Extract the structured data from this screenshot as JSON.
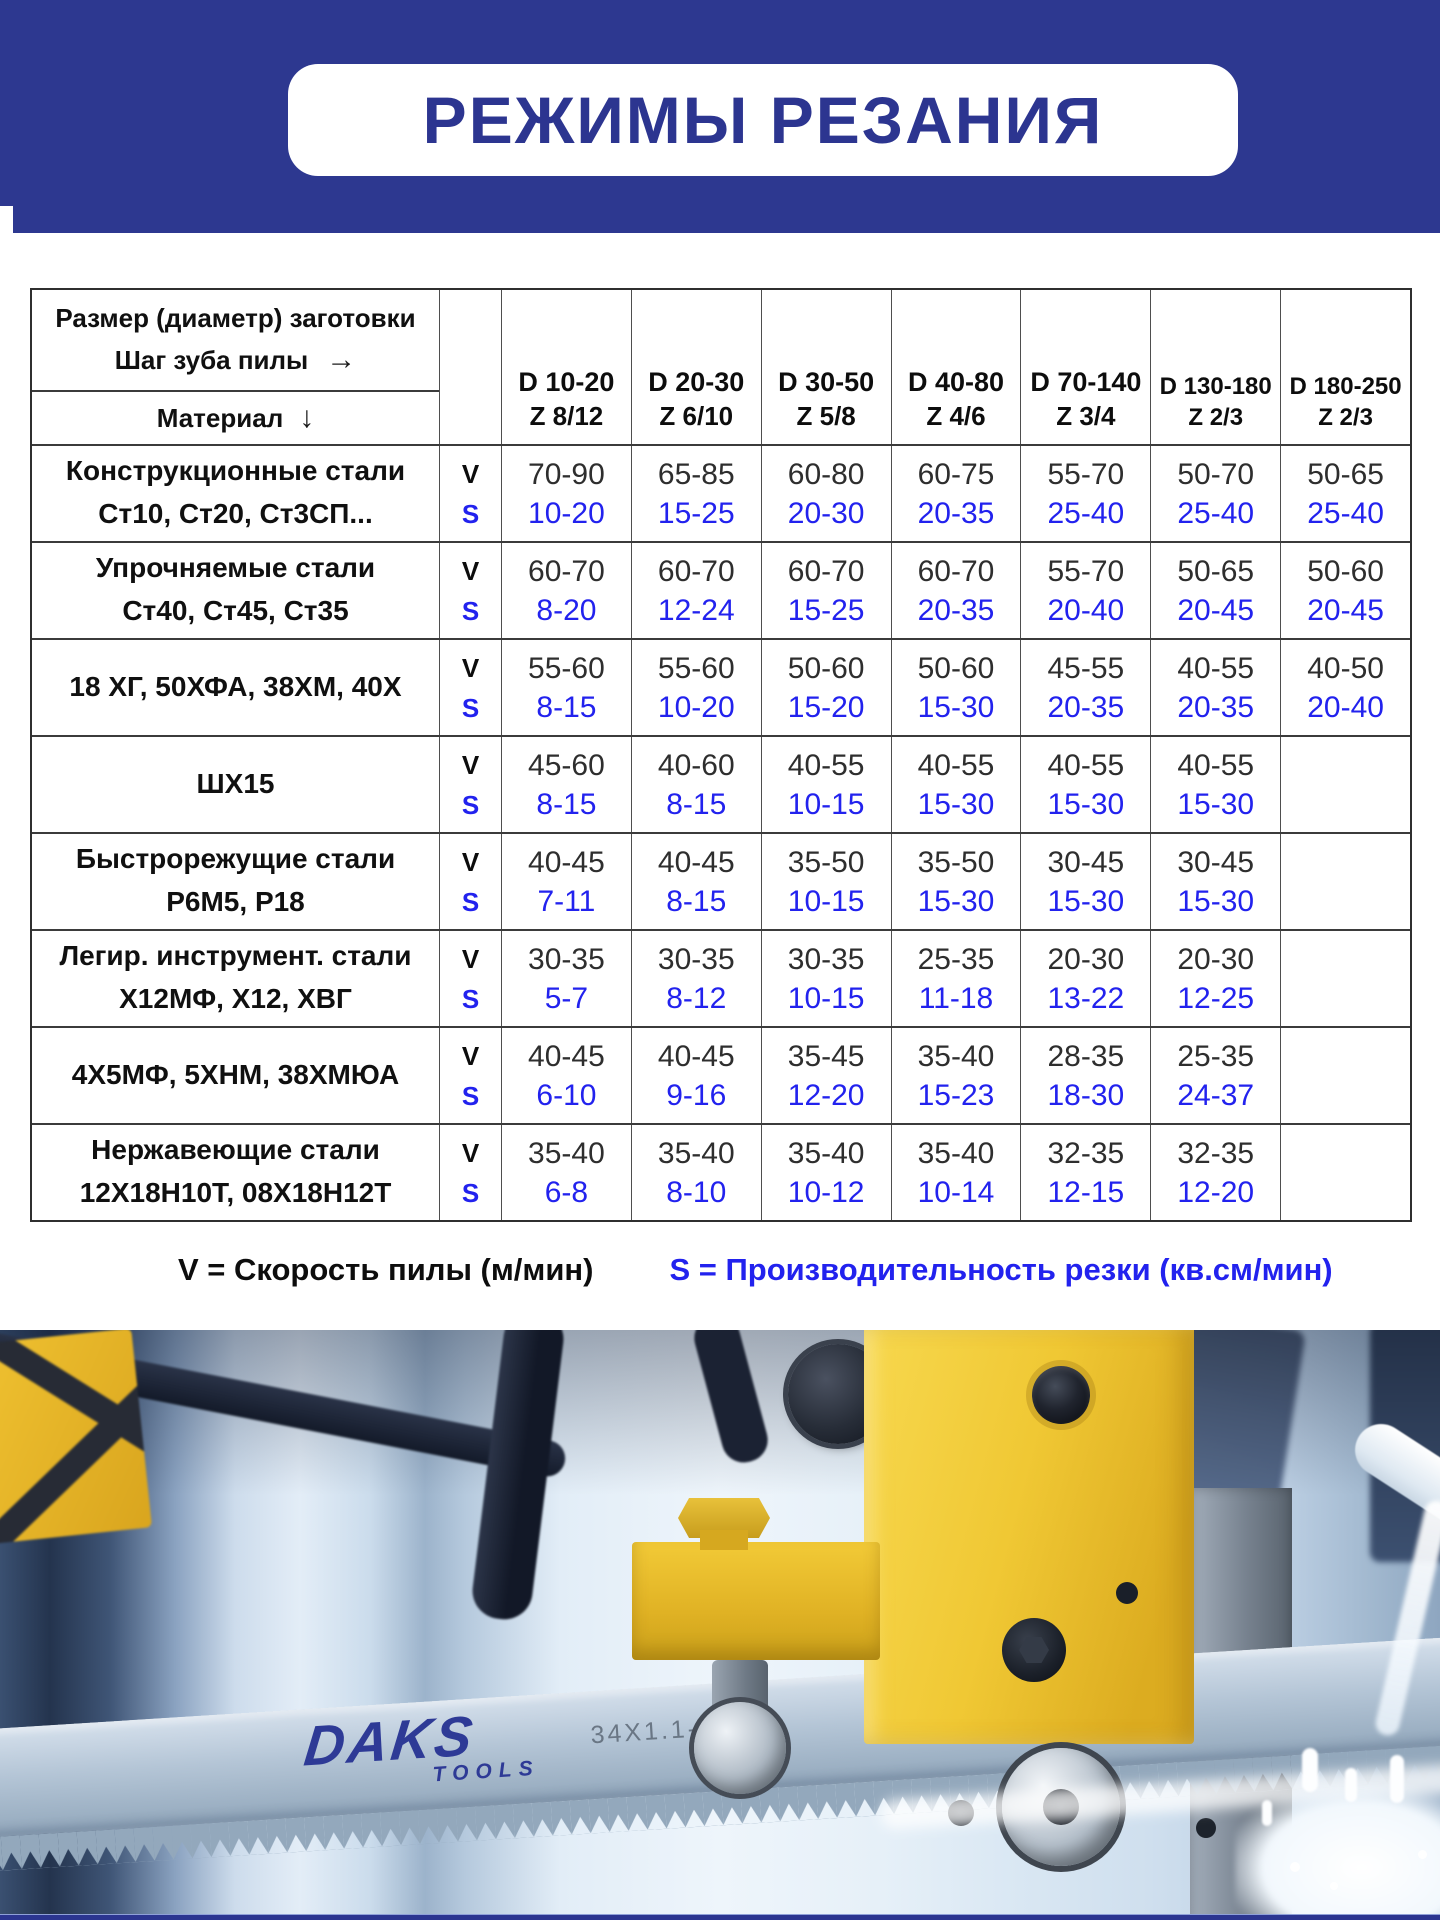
{
  "title": "РЕЖИМЫ РЕЗАНИЯ",
  "table": {
    "corner": {
      "line1": "Размер (диаметр) заготовки",
      "line2": "Шаг зуба пилы",
      "arrow_right": "→",
      "material": "Материал",
      "arrow_down": "↓"
    },
    "v_label": "V",
    "s_label": "S",
    "columns": [
      {
        "d": "D 10-20",
        "z": "Z 8/12"
      },
      {
        "d": "D 20-30",
        "z": "Z 6/10"
      },
      {
        "d": "D 30-50",
        "z": "Z 5/8"
      },
      {
        "d": "D 40-80",
        "z": "Z 4/6"
      },
      {
        "d": "D 70-140",
        "z": "Z 3/4"
      },
      {
        "d": "D 130-180",
        "z": "Z 2/3"
      },
      {
        "d": "D 180-250",
        "z": "Z 2/3"
      }
    ],
    "rows": [
      {
        "name_line1": "Конструкционные стали",
        "name_line2": "Ст10, Ст20, Ст3СП...",
        "v": [
          "70-90",
          "65-85",
          "60-80",
          "60-75",
          "55-70",
          "50-70",
          "50-65"
        ],
        "s": [
          "10-20",
          "15-25",
          "20-30",
          "20-35",
          "25-40",
          "25-40",
          "25-40"
        ]
      },
      {
        "name_line1": "Упрочняемые стали",
        "name_line2": "Ст40, Ст45, Ст35",
        "v": [
          "60-70",
          "60-70",
          "60-70",
          "60-70",
          "55-70",
          "50-65",
          "50-60"
        ],
        "s": [
          "8-20",
          "12-24",
          "15-25",
          "20-35",
          "20-40",
          "20-45",
          "20-45"
        ]
      },
      {
        "name_line1": "18 ХГ, 50ХФА, 38ХМ, 40Х",
        "name_line2": null,
        "v": [
          "55-60",
          "55-60",
          "50-60",
          "50-60",
          "45-55",
          "40-55",
          "40-50"
        ],
        "s": [
          "8-15",
          "10-20",
          "15-20",
          "15-30",
          "20-35",
          "20-35",
          "20-40"
        ]
      },
      {
        "name_line1": "ШХ15",
        "name_line2": null,
        "v": [
          "45-60",
          "40-60",
          "40-55",
          "40-55",
          "40-55",
          "40-55",
          ""
        ],
        "s": [
          "8-15",
          "8-15",
          "10-15",
          "15-30",
          "15-30",
          "15-30",
          ""
        ]
      },
      {
        "name_line1": "Быстрорежущие стали",
        "name_line2": "Р6М5, Р18",
        "v": [
          "40-45",
          "40-45",
          "35-50",
          "35-50",
          "30-45",
          "30-45",
          ""
        ],
        "s": [
          "7-11",
          "8-15",
          "10-15",
          "15-30",
          "15-30",
          "15-30",
          ""
        ]
      },
      {
        "name_line1": "Легир. инструмент. стали",
        "name_line2": "Х12МФ, Х12, ХВГ",
        "v": [
          "30-35",
          "30-35",
          "30-35",
          "25-35",
          "20-30",
          "20-30",
          ""
        ],
        "s": [
          "5-7",
          "8-12",
          "10-15",
          "11-18",
          "13-22",
          "12-25",
          ""
        ]
      },
      {
        "name_line1": "4Х5МФ, 5ХНМ, 38ХМЮА",
        "name_line2": null,
        "v": [
          "40-45",
          "40-45",
          "35-45",
          "35-40",
          "28-35",
          "25-35",
          ""
        ],
        "s": [
          "6-10",
          "9-16",
          "12-20",
          "15-23",
          "18-30",
          "24-37",
          ""
        ]
      },
      {
        "name_line1": "Нержавеющие стали",
        "name_line2": "12Х18Н10Т, 08Х18Н12Т",
        "v": [
          "35-40",
          "35-40",
          "35-40",
          "35-40",
          "32-35",
          "32-35",
          ""
        ],
        "s": [
          "6-8",
          "8-10",
          "10-12",
          "10-14",
          "12-15",
          "12-20",
          ""
        ]
      }
    ]
  },
  "legend": {
    "v_text": "V = Скорость пилы (м/мин)",
    "s_text": "S = Производительность резки (кв.см/мин)"
  },
  "photo": {
    "logo_line1": "DAKS",
    "logo_line2": "TOOLS",
    "blade_marking": "34X1.1-7-"
  },
  "colors": {
    "banner_bg": "#2d3890",
    "accent_blue": "#2222ee",
    "machine_yellow": "#efc331"
  }
}
